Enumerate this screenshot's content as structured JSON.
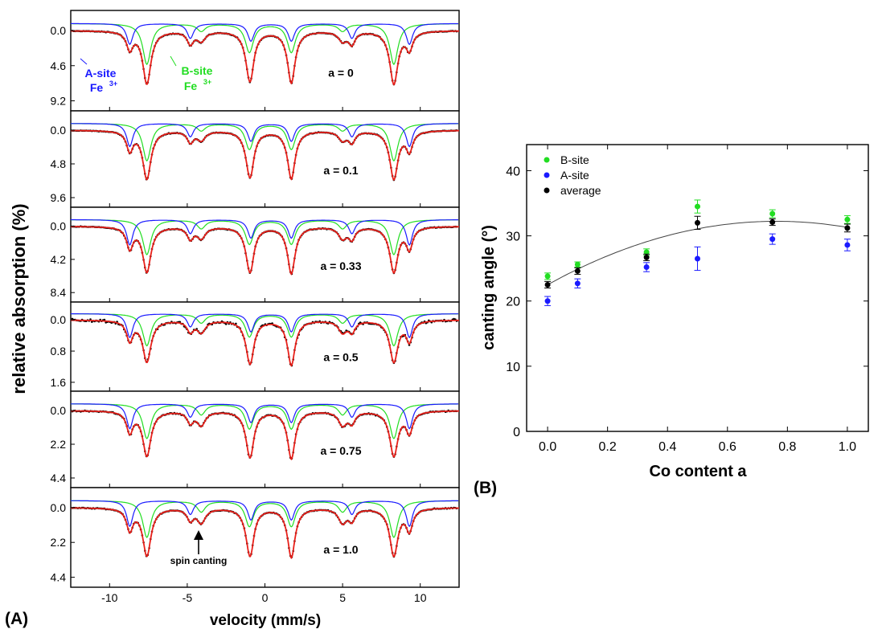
{
  "figure": {
    "panel_a_label": "(A)",
    "panel_b_label": "(B)"
  },
  "chart_data": [
    {
      "id": "A",
      "type": "line",
      "xlabel": "velocity (mm/s)",
      "ylabel": "relative absorption (%)",
      "xlim": [
        -12.5,
        12.5
      ],
      "xticks": [
        -10,
        -5,
        0,
        5,
        10
      ],
      "line_positions_mm_s": {
        "A_site": [
          -8.7,
          -4.8,
          -0.9,
          1.7,
          5.6,
          9.3
        ],
        "B_site": [
          -7.6,
          -4.1,
          -1.0,
          1.7,
          5.0,
          8.3
        ]
      },
      "colors": {
        "data": "#000000",
        "fit": "#e8201a",
        "A_site": "#1a1aff",
        "B_site": "#22dd22"
      },
      "annotations": {
        "a_site_1": "A-site",
        "a_site_2": "Fe",
        "b_site_1": "B-site",
        "b_site_2": "Fe",
        "sup": "3+",
        "spin_canting": "spin canting"
      },
      "spectra": [
        {
          "label": "a = 0",
          "yticks": [
            "0.0",
            "4.6",
            "9.2"
          ],
          "ymax": 10.2,
          "noise": 0.12,
          "a_depth": [
            0.45,
            0.32,
            0.38,
            0.38,
            0.32,
            0.45
          ],
          "b_depth": [
            0.88,
            0.16,
            0.62,
            0.62,
            0.16,
            0.88
          ]
        },
        {
          "label": "a = 0.1",
          "yticks": [
            "0.0",
            "4.8",
            "9.6"
          ],
          "ymax": 10.6,
          "noise": 0.12,
          "a_depth": [
            0.52,
            0.3,
            0.4,
            0.4,
            0.3,
            0.52
          ],
          "b_depth": [
            0.84,
            0.16,
            0.58,
            0.58,
            0.16,
            0.84
          ]
        },
        {
          "label": "a = 0.33",
          "yticks": [
            "0.0",
            "4.2",
            "8.4"
          ],
          "ymax": 9.4,
          "noise": 0.14,
          "a_depth": [
            0.58,
            0.32,
            0.42,
            0.42,
            0.32,
            0.58
          ],
          "b_depth": [
            0.8,
            0.2,
            0.56,
            0.56,
            0.2,
            0.8
          ]
        },
        {
          "label": "a = 0.5",
          "yticks": [
            "0.0",
            "0.8",
            "1.6"
          ],
          "ymax": 1.85,
          "noise": 0.55,
          "a_depth": [
            0.58,
            0.32,
            0.44,
            0.44,
            0.32,
            0.58
          ],
          "b_depth": [
            0.78,
            0.22,
            0.56,
            0.56,
            0.22,
            0.78
          ]
        },
        {
          "label": "a = 0.75",
          "yticks": [
            "0.0",
            "2.2",
            "4.4"
          ],
          "ymax": 4.9,
          "noise": 0.22,
          "a_depth": [
            0.56,
            0.3,
            0.42,
            0.42,
            0.3,
            0.56
          ],
          "b_depth": [
            0.78,
            0.24,
            0.56,
            0.56,
            0.24,
            0.78
          ]
        },
        {
          "label": "a = 1.0",
          "yticks": [
            "0.0",
            "2.2",
            "4.4"
          ],
          "ymax": 4.9,
          "noise": 0.16,
          "a_depth": [
            0.56,
            0.3,
            0.42,
            0.42,
            0.3,
            0.56
          ],
          "b_depth": [
            0.8,
            0.24,
            0.56,
            0.56,
            0.24,
            0.8
          ]
        }
      ]
    },
    {
      "id": "B",
      "type": "scatter",
      "xlabel": "Co content a",
      "ylabel": "canting angle (°)",
      "xlim": [
        -0.07,
        1.07
      ],
      "ylim": [
        0,
        44
      ],
      "xticks": [
        0.0,
        0.2,
        0.4,
        0.6,
        0.8,
        1.0
      ],
      "yticks": [
        0,
        10,
        20,
        30,
        40
      ],
      "legend_position": "top-left",
      "x": [
        0.0,
        0.1,
        0.33,
        0.5,
        0.75,
        1.0
      ],
      "series": [
        {
          "name": "B-site",
          "color": "#22dd22",
          "values": [
            23.8,
            25.6,
            27.5,
            34.5,
            33.4,
            32.5
          ],
          "errors": [
            0.5,
            0.4,
            0.5,
            1.0,
            0.6,
            0.6
          ]
        },
        {
          "name": "A-site",
          "color": "#1a1aff",
          "values": [
            20.0,
            22.7,
            25.2,
            26.5,
            29.5,
            28.6
          ],
          "errors": [
            0.7,
            0.7,
            0.7,
            1.8,
            0.8,
            0.9
          ]
        },
        {
          "name": "average",
          "color": "#000000",
          "values": [
            22.5,
            24.6,
            26.7,
            32.0,
            32.1,
            31.2
          ],
          "errors": [
            0.5,
            0.5,
            0.5,
            1.0,
            0.5,
            0.6
          ]
        }
      ],
      "fit_curve": {
        "type": "quadratic",
        "coefficients": [
          22.5,
          25.5,
          -16.7
        ],
        "color": "#444444"
      }
    }
  ]
}
